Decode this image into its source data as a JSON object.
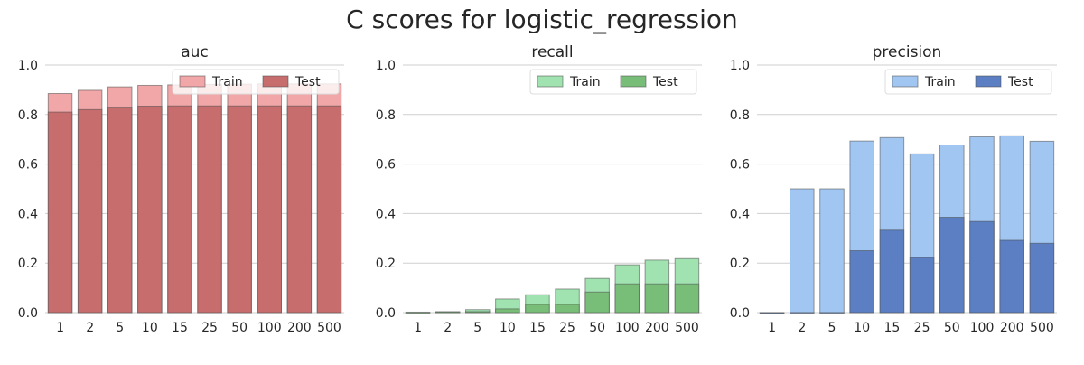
{
  "figure": {
    "title": "C scores for logistic_regression"
  },
  "chart_data": [
    {
      "type": "bar",
      "title": "auc",
      "xlabel": "",
      "ylabel": "",
      "ylim": [
        0,
        1.0
      ],
      "yticks": [
        "0.0",
        "0.2",
        "0.4",
        "0.6",
        "0.8",
        "1.0"
      ],
      "grid": "horizontal",
      "legend_position": "top-right",
      "overlaid": true,
      "categories": [
        "1",
        "2",
        "5",
        "10",
        "15",
        "25",
        "50",
        "100",
        "200",
        "500"
      ],
      "series": [
        {
          "name": "Train",
          "color": "#f1a7a7",
          "values": [
            0.885,
            0.898,
            0.912,
            0.918,
            0.92,
            0.922,
            0.923,
            0.924,
            0.924,
            0.924
          ]
        },
        {
          "name": "Test",
          "color": "#c76d6d",
          "values": [
            0.81,
            0.82,
            0.83,
            0.834,
            0.835,
            0.835,
            0.835,
            0.835,
            0.835,
            0.835
          ]
        }
      ]
    },
    {
      "type": "bar",
      "title": "recall",
      "xlabel": "",
      "ylabel": "",
      "ylim": [
        0,
        1.0
      ],
      "yticks": [
        "0.0",
        "0.2",
        "0.4",
        "0.6",
        "0.8",
        "1.0"
      ],
      "grid": "horizontal",
      "legend_position": "top-right",
      "overlaid": true,
      "categories": [
        "1",
        "2",
        "5",
        "10",
        "15",
        "25",
        "50",
        "100",
        "200",
        "500"
      ],
      "series": [
        {
          "name": "Train",
          "color": "#a0e3b0",
          "values": [
            0.002,
            0.004,
            0.012,
            0.055,
            0.072,
            0.095,
            0.138,
            0.193,
            0.212,
            0.218
          ]
        },
        {
          "name": "Test",
          "color": "#78be78",
          "values": [
            0.0,
            0.002,
            0.004,
            0.015,
            0.033,
            0.033,
            0.083,
            0.116,
            0.116,
            0.116
          ]
        }
      ]
    },
    {
      "type": "bar",
      "title": "precision",
      "xlabel": "",
      "ylabel": "",
      "ylim": [
        0,
        1.0
      ],
      "yticks": [
        "0.0",
        "0.2",
        "0.4",
        "0.6",
        "0.8",
        "1.0"
      ],
      "grid": "horizontal",
      "legend_position": "top-right",
      "overlaid": true,
      "categories": [
        "1",
        "2",
        "5",
        "10",
        "15",
        "25",
        "50",
        "100",
        "200",
        "500"
      ],
      "series": [
        {
          "name": "Train",
          "color": "#a1c6f2",
          "values": [
            0.0,
            0.5,
            0.5,
            0.693,
            0.707,
            0.641,
            0.677,
            0.71,
            0.714,
            0.692
          ]
        },
        {
          "name": "Test",
          "color": "#5b7fc2",
          "values": [
            0.0,
            0.0,
            0.0,
            0.25,
            0.333,
            0.222,
            0.385,
            0.368,
            0.292,
            0.28
          ]
        }
      ]
    }
  ]
}
